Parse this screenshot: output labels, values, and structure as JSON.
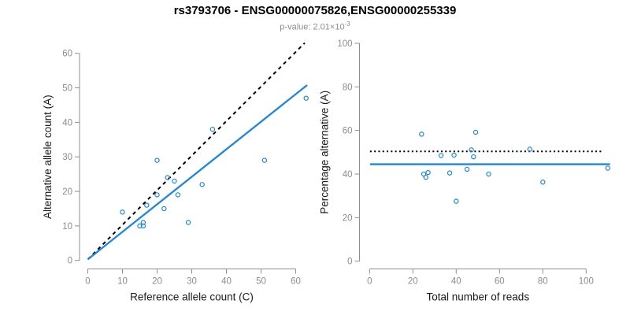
{
  "header": {
    "title": "rs3793706 - ENSG00000075826,ENSG00000255339",
    "subtitle_base": "p-value: 2.01×10",
    "subtitle_exponent": "-3"
  },
  "colors": {
    "point": "#1E86DE",
    "fit_line": "#1E86DE",
    "reference_line": "#000000",
    "axis": "#8F8F8F",
    "tick_label": "#8C8C8C",
    "axis_title": "#1A1A1A",
    "title": "#000000",
    "subtitle": "#8C8C8C",
    "background": "#FFFFFF"
  },
  "chart_data": [
    {
      "id": "allele-counts",
      "type": "scatter",
      "xlabel": "Reference allele count (C)",
      "ylabel": "Alternative allele count (A)",
      "xticks": [
        0,
        10,
        20,
        30,
        40,
        50,
        60
      ],
      "yticks": [
        0,
        10,
        20,
        30,
        40,
        50,
        60
      ],
      "xlim": [
        0,
        63.5
      ],
      "ylim": [
        0,
        63.5
      ],
      "grid": false,
      "points": [
        [
          10,
          14
        ],
        [
          15,
          10
        ],
        [
          16,
          10
        ],
        [
          16,
          11
        ],
        [
          17,
          16
        ],
        [
          20,
          19
        ],
        [
          20,
          29
        ],
        [
          22,
          15
        ],
        [
          23,
          24
        ],
        [
          25,
          23
        ],
        [
          26,
          19
        ],
        [
          29,
          11
        ],
        [
          33,
          22
        ],
        [
          36,
          38
        ],
        [
          51,
          29
        ],
        [
          63,
          47
        ]
      ],
      "lines": [
        {
          "name": "expected-identity-line",
          "style": "dashed",
          "color": "#000000",
          "x1": 0,
          "y1": 0.3,
          "x2": 62.6,
          "y2": 63.0
        },
        {
          "name": "fitted-line",
          "style": "solid",
          "color": "#1E86DE",
          "x1": 0,
          "y1": 0.3,
          "x2": 63.3,
          "y2": 50.8
        }
      ]
    },
    {
      "id": "percentage-vs-reads",
      "type": "scatter",
      "xlabel": "Total number of reads",
      "ylabel": "Percentage alternative (A)",
      "xticks": [
        0,
        20,
        40,
        60,
        80,
        100
      ],
      "yticks": [
        0,
        20,
        40,
        60,
        80,
        100
      ],
      "xlim": [
        0,
        112
      ],
      "ylim": [
        0,
        100
      ],
      "grid": false,
      "points": [
        [
          24,
          58.3
        ],
        [
          25,
          40.0
        ],
        [
          26,
          38.5
        ],
        [
          27,
          40.7
        ],
        [
          33,
          48.5
        ],
        [
          37,
          40.5
        ],
        [
          39,
          48.7
        ],
        [
          40,
          27.5
        ],
        [
          45,
          42.2
        ],
        [
          47,
          51.1
        ],
        [
          48,
          47.9
        ],
        [
          49,
          59.2
        ],
        [
          55,
          40.0
        ],
        [
          74,
          51.4
        ],
        [
          80,
          36.3
        ],
        [
          110,
          42.7
        ]
      ],
      "lines": [
        {
          "name": "expected-50-percent-line",
          "style": "dotted",
          "color": "#000000",
          "x1": 0.2,
          "y1": 50.4,
          "x2": 108,
          "y2": 50.4
        },
        {
          "name": "mean-percentage-line",
          "style": "solid",
          "color": "#1E86DE",
          "x1": 0.2,
          "y1": 44.5,
          "x2": 111,
          "y2": 44.5
        }
      ]
    }
  ]
}
